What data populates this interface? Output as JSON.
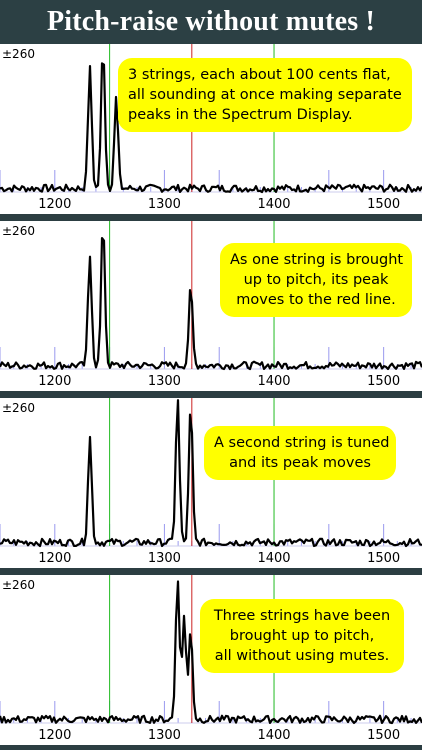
{
  "title": "Pitch-raise without mutes !",
  "colors": {
    "background": "#2c3e42",
    "callout": "#ffff00",
    "green_line": "#22bb22",
    "red_line": "#cc2222",
    "tick": "#9999ee",
    "trace": "#000000"
  },
  "panels": [
    {
      "scale_label": "±260",
      "callout_lines": [
        "3 strings, each about 100 cents flat,",
        "all sounding at once making separate",
        "peaks in the Spectrum Display."
      ],
      "chart_data": {
        "type": "line",
        "x_ticks": [
          "1200",
          "1300",
          "1400",
          "1500"
        ],
        "xlim": [
          1150,
          1535
        ],
        "ylim": [
          0,
          1
        ],
        "green_lines": [
          1250,
          1400
        ],
        "red_line": 1325,
        "peaks": [
          {
            "x": 1232,
            "y": 0.82
          },
          {
            "x": 1244,
            "y": 0.99
          },
          {
            "x": 1256,
            "y": 0.62
          }
        ]
      }
    },
    {
      "scale_label": "±260",
      "callout_lines": [
        "As one string is brought",
        "up to pitch, its peak",
        "moves to the red line."
      ],
      "chart_data": {
        "type": "line",
        "x_ticks": [
          "1200",
          "1300",
          "1400",
          "1500"
        ],
        "xlim": [
          1150,
          1535
        ],
        "ylim": [
          0,
          1
        ],
        "green_lines": [
          1250,
          1400
        ],
        "red_line": 1325,
        "peaks": [
          {
            "x": 1232,
            "y": 0.75
          },
          {
            "x": 1244,
            "y": 0.99
          },
          {
            "x": 1324,
            "y": 0.53
          }
        ]
      }
    },
    {
      "scale_label": "±260",
      "callout_lines": [
        "A second string is tuned",
        "and its peak moves"
      ],
      "chart_data": {
        "type": "line",
        "x_ticks": [
          "1200",
          "1300",
          "1400",
          "1500"
        ],
        "xlim": [
          1150,
          1535
        ],
        "ylim": [
          0,
          1
        ],
        "green_lines": [
          1250,
          1400
        ],
        "red_line": 1325,
        "peaks": [
          {
            "x": 1232,
            "y": 0.72
          },
          {
            "x": 1312,
            "y": 0.99
          },
          {
            "x": 1324,
            "y": 0.93
          }
        ]
      }
    },
    {
      "scale_label": "±260",
      "callout_lines": [
        "Three strings have been",
        "brought up to pitch,",
        "all without using mutes."
      ],
      "chart_data": {
        "type": "line",
        "x_ticks": [
          "1200",
          "1300",
          "1400",
          "1500"
        ],
        "xlim": [
          1150,
          1535
        ],
        "ylim": [
          0,
          1
        ],
        "green_lines": [
          1250,
          1400
        ],
        "red_line": 1325,
        "peaks": [
          {
            "x": 1312,
            "y": 0.99
          },
          {
            "x": 1318,
            "y": 0.72
          },
          {
            "x": 1324,
            "y": 0.62
          }
        ]
      }
    }
  ]
}
